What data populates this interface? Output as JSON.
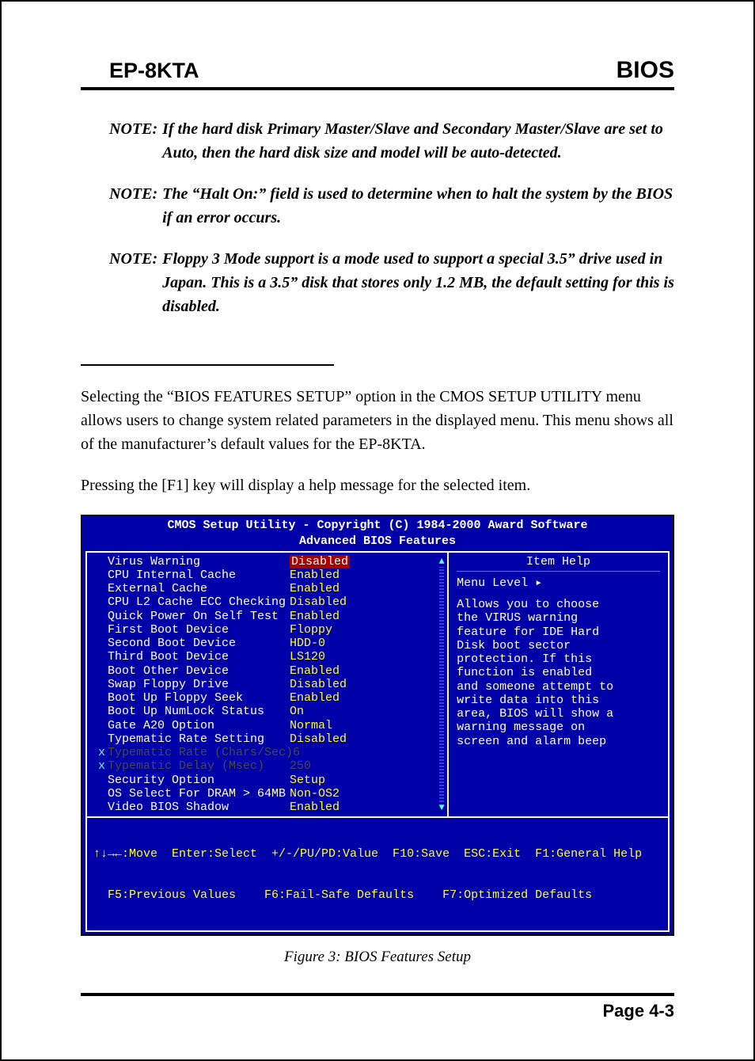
{
  "header": {
    "left": "EP-8KTA",
    "right": "BIOS"
  },
  "notes": [
    {
      "label": "NOTE:",
      "body": "If the hard disk Primary Master/Slave and Secondary Master/Slave are set to Auto, then the hard disk size and model will be auto-detected."
    },
    {
      "label": "NOTE:",
      "body": "The “Halt On:” field is used to determine when to halt the system by the BIOS if an error occurs."
    },
    {
      "label": "NOTE:",
      "body": "Floppy 3 Mode support is a mode used to support a special 3.5” drive used in Japan.  This is a 3.5” disk that stores only 1.2 MB, the default setting for this is disabled."
    }
  ],
  "body": {
    "p1": "Selecting the “BIOS FEATURES SETUP” option in the CMOS SETUP UTILITY menu allows users to change system related parameters in the displayed menu.  This menu shows all  of the manufacturer’s default values for the  EP-8KTA.",
    "p2": "Pressing the [F1] key will display a help message for the selected item."
  },
  "bios": {
    "title1": "CMOS Setup Utility - Copyright (C) 1984-2000 Award Software",
    "title2": "Advanced BIOS Features",
    "settings": [
      {
        "pre": "",
        "label": "Virus Warning",
        "value": "Disabled",
        "sel": true,
        "dis": false
      },
      {
        "pre": "",
        "label": "CPU Internal Cache",
        "value": "Enabled",
        "sel": false,
        "dis": false
      },
      {
        "pre": "",
        "label": "External Cache",
        "value": "Enabled",
        "sel": false,
        "dis": false
      },
      {
        "pre": "",
        "label": "CPU L2 Cache ECC Checking",
        "value": "Disabled",
        "sel": false,
        "dis": false
      },
      {
        "pre": "",
        "label": "Quick Power On Self Test",
        "value": "Enabled",
        "sel": false,
        "dis": false
      },
      {
        "pre": "",
        "label": "First Boot Device",
        "value": "Floppy",
        "sel": false,
        "dis": false
      },
      {
        "pre": "",
        "label": "Second Boot Device",
        "value": "HDD-0",
        "sel": false,
        "dis": false
      },
      {
        "pre": "",
        "label": "Third Boot Device",
        "value": "LS120",
        "sel": false,
        "dis": false
      },
      {
        "pre": "",
        "label": "Boot Other Device",
        "value": "Enabled",
        "sel": false,
        "dis": false
      },
      {
        "pre": "",
        "label": "Swap Floppy Drive",
        "value": "Disabled",
        "sel": false,
        "dis": false
      },
      {
        "pre": "",
        "label": "Boot Up Floppy Seek",
        "value": "Enabled",
        "sel": false,
        "dis": false
      },
      {
        "pre": "",
        "label": "Boot Up NumLock Status",
        "value": "On",
        "sel": false,
        "dis": false
      },
      {
        "pre": "",
        "label": "Gate A20 Option",
        "value": "Normal",
        "sel": false,
        "dis": false
      },
      {
        "pre": "",
        "label": "Typematic Rate Setting",
        "value": "Disabled",
        "sel": false,
        "dis": false
      },
      {
        "pre": "x",
        "label": "Typematic Rate (Chars/Sec)",
        "value": "6",
        "sel": false,
        "dis": true
      },
      {
        "pre": "x",
        "label": "Typematic Delay (Msec)",
        "value": "250",
        "sel": false,
        "dis": true
      },
      {
        "pre": "",
        "label": "Security Option",
        "value": "Setup",
        "sel": false,
        "dis": false
      },
      {
        "pre": "",
        "label": "OS Select For DRAM > 64MB",
        "value": "Non-OS2",
        "sel": false,
        "dis": false
      },
      {
        "pre": "",
        "label": "Video BIOS Shadow",
        "value": "Enabled",
        "sel": false,
        "dis": false
      }
    ],
    "help": {
      "title": "Item Help",
      "menu_level": "Menu Level   ▸",
      "lines": [
        "Allows you to choose",
        "the VIRUS warning",
        "feature for IDE Hard",
        "Disk boot sector",
        "protection. If this",
        "function is enabled",
        "and someone attempt to",
        "write data into this",
        "area, BIOS will show a",
        "warning message on",
        "screen and alarm beep"
      ]
    },
    "footer": {
      "line1": "↑↓→←:Move  Enter:Select  +/-/PU/PD:Value  F10:Save  ESC:Exit  F1:General Help",
      "line2": "  F5:Previous Values    F6:Fail-Safe Defaults    F7:Optimized Defaults"
    }
  },
  "caption": "Figure 3:  BIOS Features Setup",
  "page_number": "Page 4-3",
  "colors": {
    "bios_bg": "#0000a8",
    "bios_value": "#ffff32",
    "bios_selected_bg": "#a80000",
    "bios_disabled": "#484848",
    "bios_accent": "#55ffff"
  }
}
